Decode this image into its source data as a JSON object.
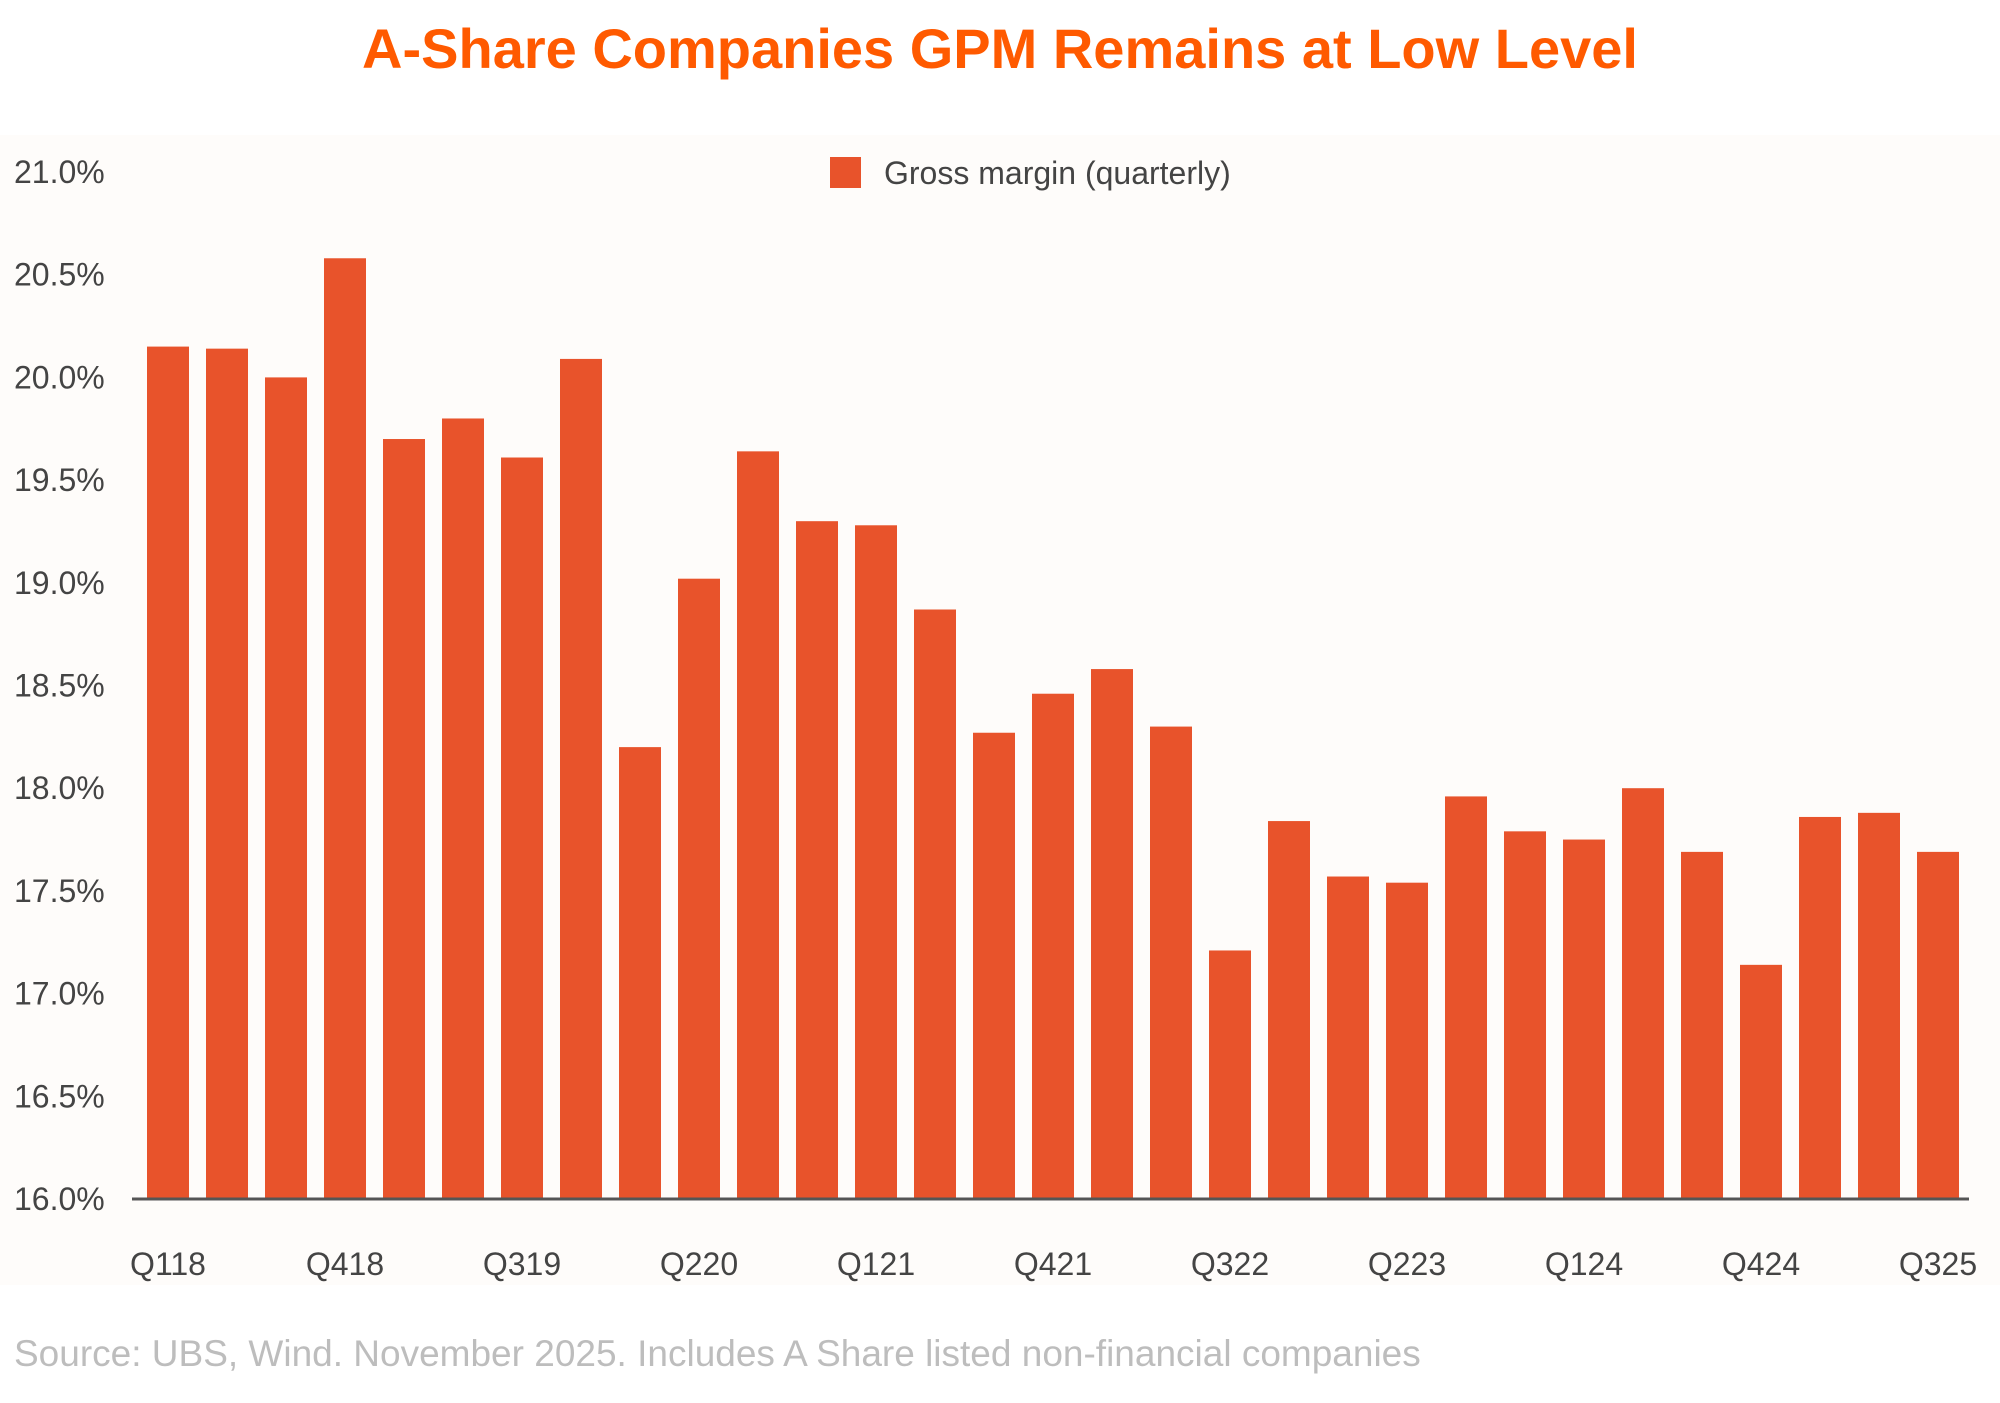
{
  "colors": {
    "title": "#ff5a00",
    "bar": "#e8532b",
    "plot_background": "#fefcfa",
    "axis": "#555555"
  },
  "footer": {
    "source": "Source: UBS, Wind. November 2025. Includes A Share listed non-financial companies"
  },
  "chart_data": {
    "type": "bar",
    "title": "A-Share Companies GPM Remains at Low Level",
    "xlabel": "",
    "ylabel": "",
    "ylim": [
      16.0,
      21.0
    ],
    "y_ticks": [
      "16.0%",
      "16.5%",
      "17.0%",
      "17.5%",
      "18.0%",
      "18.5%",
      "19.0%",
      "19.5%",
      "20.0%",
      "20.5%",
      "21.0%"
    ],
    "grid": false,
    "legend_position": "top-center",
    "categories": [
      "Q118",
      "Q218",
      "Q318",
      "Q418",
      "Q119",
      "Q219",
      "Q319",
      "Q419",
      "Q120",
      "Q220",
      "Q320",
      "Q420",
      "Q121",
      "Q221",
      "Q321",
      "Q421",
      "Q122",
      "Q222",
      "Q322",
      "Q422",
      "Q123",
      "Q223",
      "Q323",
      "Q423",
      "Q124",
      "Q224",
      "Q324",
      "Q424",
      "Q125",
      "Q225",
      "Q325"
    ],
    "x_tick_labels": [
      "Q118",
      "Q418",
      "Q319",
      "Q220",
      "Q121",
      "Q421",
      "Q322",
      "Q223",
      "Q124",
      "Q424",
      "Q325"
    ],
    "series": [
      {
        "name": "Gross margin (quarterly)",
        "values": [
          20.15,
          20.14,
          20.0,
          20.58,
          19.7,
          19.8,
          19.61,
          20.09,
          18.2,
          19.02,
          19.64,
          19.3,
          19.28,
          18.87,
          18.27,
          18.46,
          18.58,
          18.3,
          17.21,
          17.84,
          17.57,
          17.54,
          17.96,
          17.79,
          17.75,
          18.0,
          17.69,
          17.14,
          17.86,
          17.88,
          17.69
        ]
      }
    ]
  }
}
